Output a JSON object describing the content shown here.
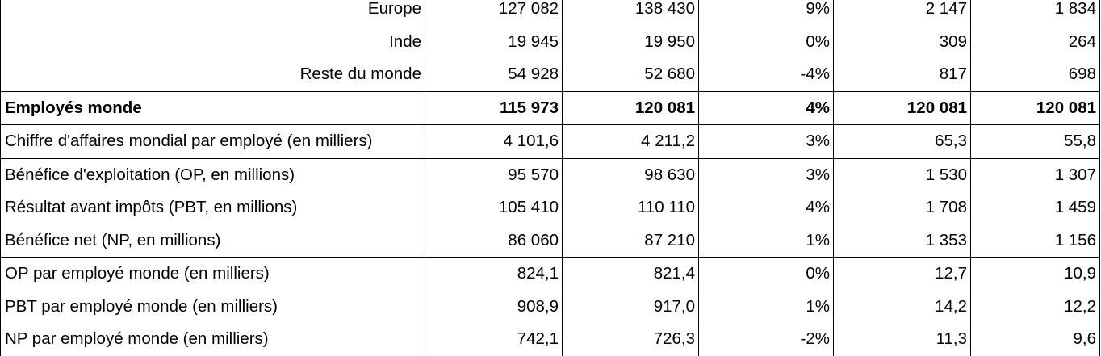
{
  "rows": [
    {
      "label": "Europe",
      "align": "right",
      "values": [
        "127 082",
        "138 430",
        "9%",
        "2 147",
        "1 834"
      ]
    },
    {
      "label": "Inde",
      "align": "right",
      "values": [
        "19 945",
        "19 950",
        "0%",
        "309",
        "264"
      ]
    },
    {
      "label": "Reste du monde",
      "align": "right",
      "values": [
        "54 928",
        "52 680",
        "-4%",
        "817",
        "698"
      ]
    },
    {
      "label": "Employés monde",
      "align": "left",
      "values": [
        "115 973",
        "120 081",
        "4%",
        "120 081",
        "120 081"
      ]
    },
    {
      "label": "Chiffre d'affaires mondial par employé (en milliers)",
      "align": "left",
      "values": [
        "4 101,6",
        "4 211,2",
        "3%",
        "65,3",
        "55,8"
      ]
    },
    {
      "label": "Bénéfice d'exploitation (OP, en millions)",
      "align": "left",
      "values": [
        "95 570",
        "98 630",
        "3%",
        "1 530",
        "1 307"
      ]
    },
    {
      "label": "Résultat avant impôts (PBT, en millions)",
      "align": "left",
      "values": [
        "105 410",
        "110 110",
        "4%",
        "1 708",
        "1 459"
      ]
    },
    {
      "label": "Bénéfice net (NP, en millions)",
      "align": "left",
      "values": [
        "86 060",
        "87 210",
        "1%",
        "1 353",
        "1 156"
      ]
    },
    {
      "label": "OP par employé monde (en milliers)",
      "align": "left",
      "values": [
        "824,1",
        "821,4",
        "0%",
        "12,7",
        "10,9"
      ]
    },
    {
      "label": "PBT par employé monde (en milliers)",
      "align": "left",
      "values": [
        "908,9",
        "917,0",
        "1%",
        "14,2",
        "12,2"
      ]
    },
    {
      "label": "NP par employé monde (en milliers)",
      "align": "left",
      "values": [
        "742,1",
        "726,3",
        "-2%",
        "11,3",
        "9,6"
      ]
    }
  ]
}
